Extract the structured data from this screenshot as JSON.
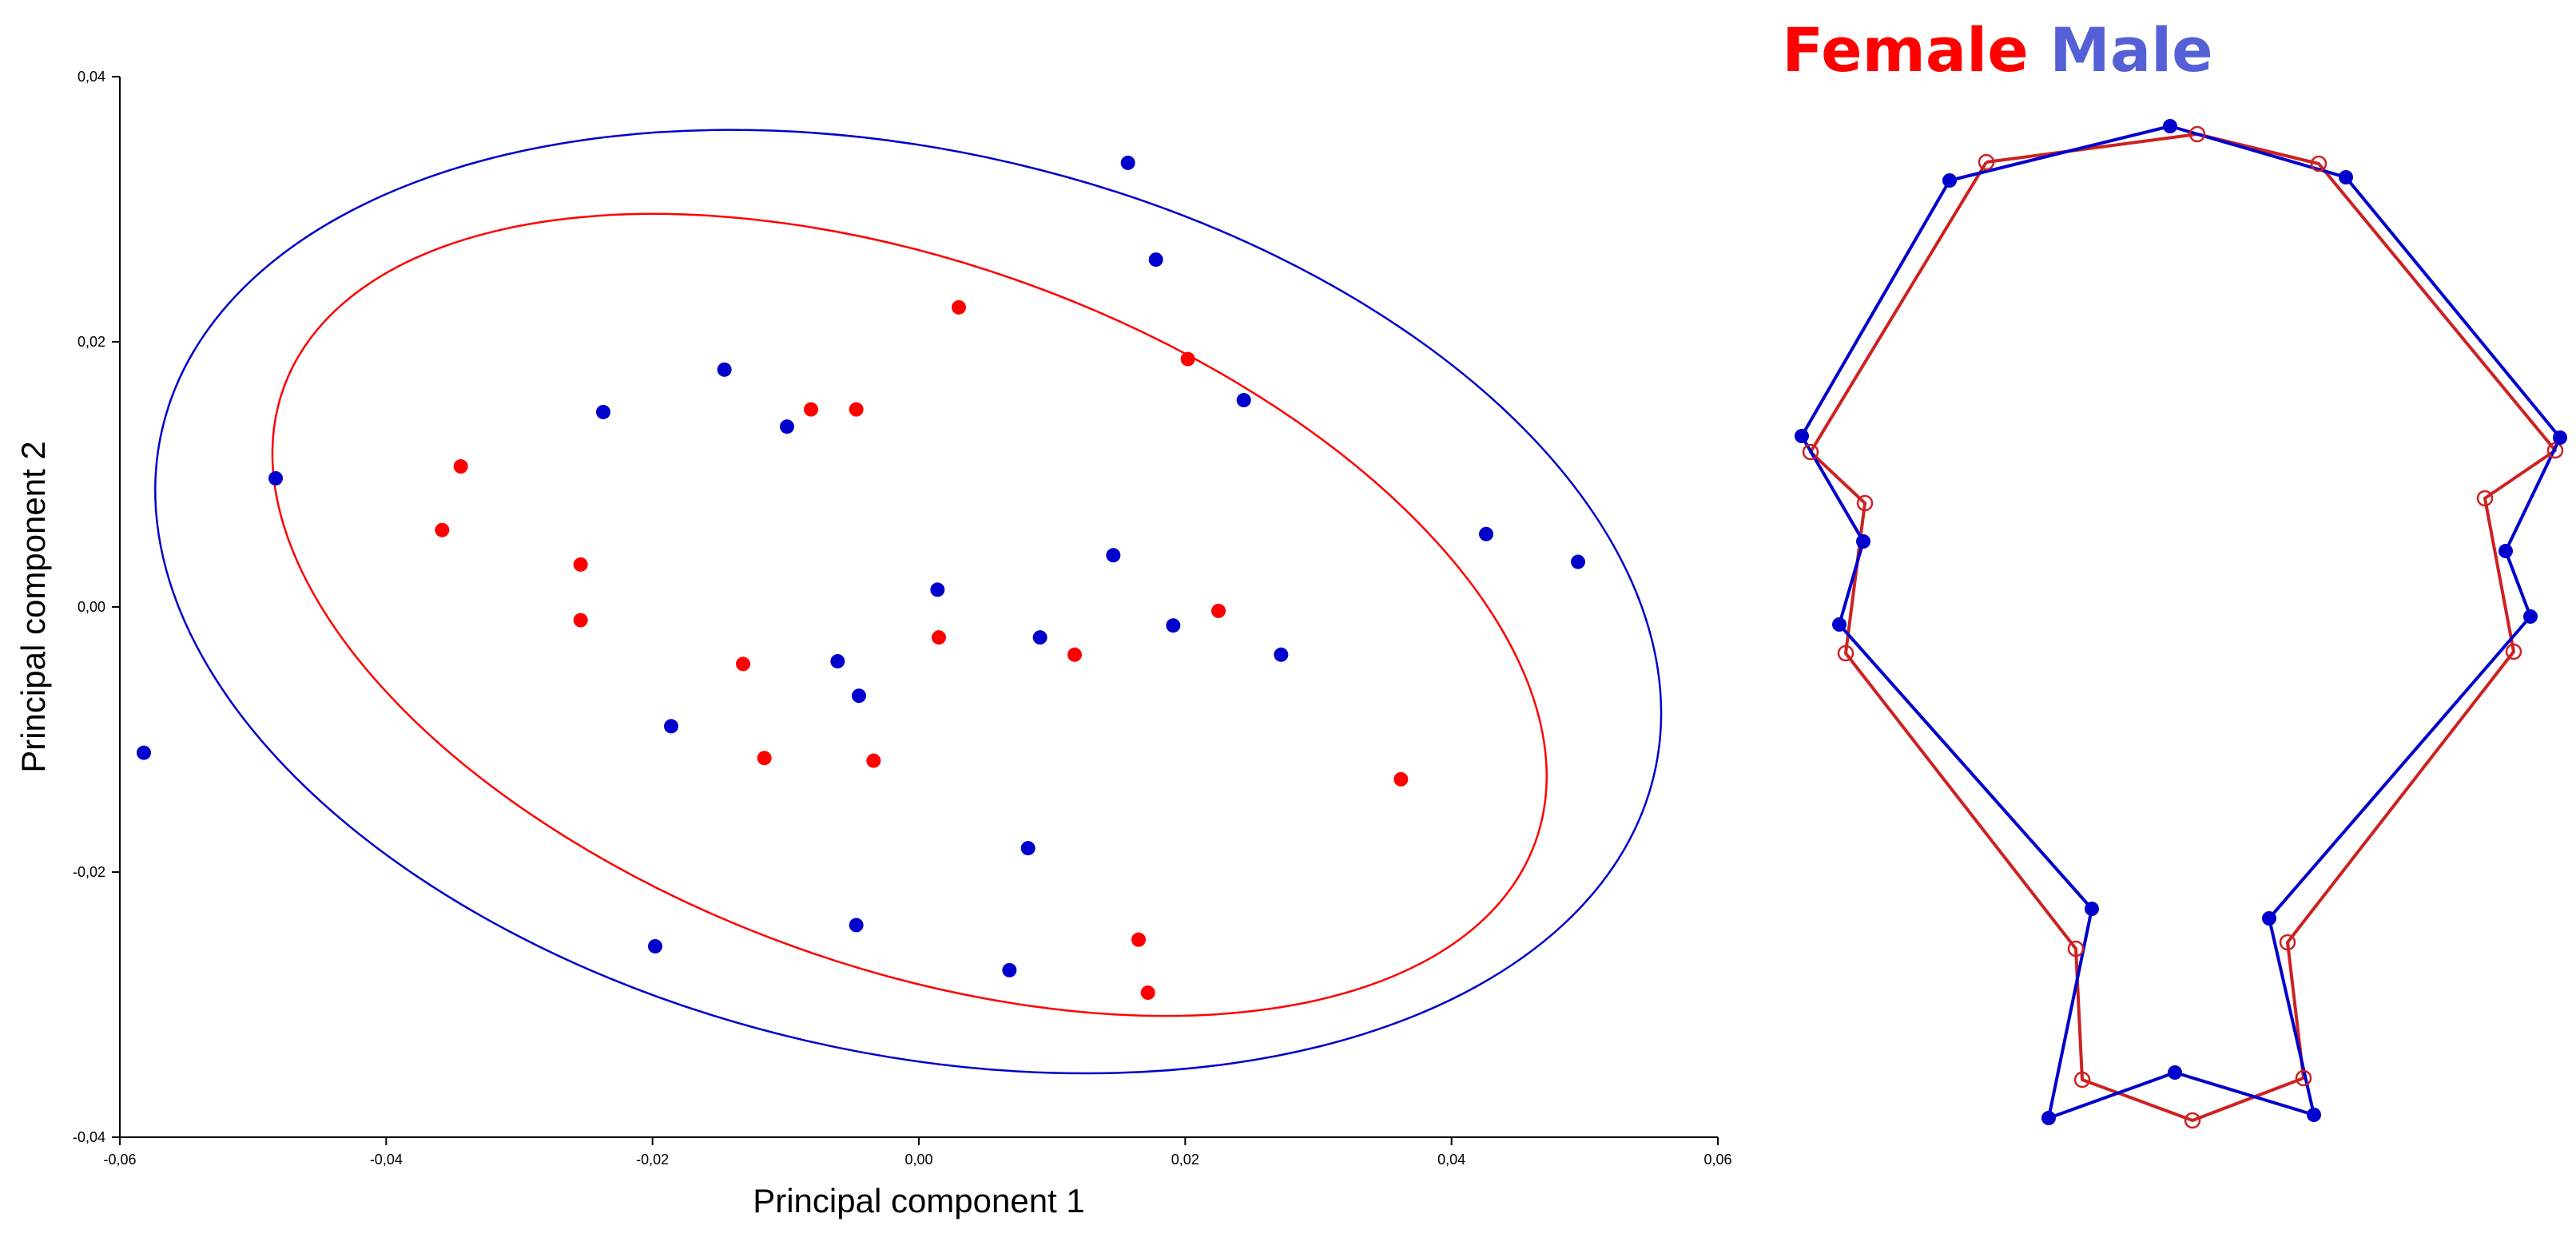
{
  "colors": {
    "female": "#ff0000",
    "male": "#0000cc",
    "male_legend": "#5560d6",
    "female_shape": "#cc2222",
    "axis": "#000000"
  },
  "legend": {
    "female_label": "Female",
    "male_label": "Male"
  },
  "chart_data": [
    {
      "type": "scatter",
      "title": "",
      "xlabel": "Principal component 1",
      "ylabel": "Principal component 2",
      "xlim": [
        -0.06,
        0.06
      ],
      "ylim": [
        -0.04,
        0.04
      ],
      "x_ticks": [
        "-0,06",
        "-0,04",
        "-0,02",
        "0,00",
        "0,02",
        "0,04",
        "0,06"
      ],
      "y_ticks": [
        "0,04",
        "0,02",
        "0,00",
        "-0,02",
        "-0,04"
      ],
      "grid": false,
      "series": [
        {
          "name": "Female",
          "color": "#ff0000",
          "points": [
            [
              0.003,
              0.0226
            ],
            [
              0.0202,
              0.0187
            ],
            [
              -0.0081,
              0.0149
            ],
            [
              -0.0047,
              0.0149
            ],
            [
              -0.0344,
              0.0106
            ],
            [
              -0.0358,
              0.0058
            ],
            [
              -0.0254,
              0.0032
            ],
            [
              -0.0254,
              -0.001
            ],
            [
              -0.0132,
              -0.0043
            ],
            [
              -0.0116,
              -0.0114
            ],
            [
              -0.0034,
              -0.0116
            ],
            [
              0.0015,
              -0.0023
            ],
            [
              0.0117,
              -0.0036
            ],
            [
              0.0225,
              -0.0003
            ],
            [
              0.0362,
              -0.013
            ],
            [
              0.0165,
              -0.0251
            ],
            [
              0.0172,
              -0.0291
            ]
          ],
          "ellipse": {
            "center": [
              -0.0007,
              -0.0006
            ],
            "semi_major": 0.05,
            "semi_minor": 0.0265,
            "angle_deg": -20
          }
        },
        {
          "name": "Male",
          "color": "#0000cc",
          "points": [
            [
              0.0157,
              0.0335
            ],
            [
              0.0178,
              0.0262
            ],
            [
              -0.0146,
              0.0179
            ],
            [
              -0.0237,
              0.0147
            ],
            [
              -0.0099,
              0.0136
            ],
            [
              0.0244,
              0.0156
            ],
            [
              -0.0483,
              0.0097
            ],
            [
              0.0426,
              0.0055
            ],
            [
              0.0495,
              0.0034
            ],
            [
              0.0014,
              0.0013
            ],
            [
              0.0146,
              0.0039
            ],
            [
              -0.0061,
              -0.0041
            ],
            [
              -0.0045,
              -0.0067
            ],
            [
              0.0091,
              -0.0023
            ],
            [
              0.0191,
              -0.0014
            ],
            [
              0.0272,
              -0.0036
            ],
            [
              -0.0186,
              -0.009
            ],
            [
              -0.0582,
              -0.011
            ],
            [
              0.0082,
              -0.0182
            ],
            [
              -0.0047,
              -0.024
            ],
            [
              -0.0198,
              -0.0256
            ],
            [
              0.0068,
              -0.0274
            ]
          ],
          "ellipse": {
            "center": [
              -0.0008,
              0.0004
            ],
            "semi_major": 0.0575,
            "semi_minor": 0.034,
            "angle_deg": -13
          }
        }
      ]
    },
    {
      "type": "line",
      "title": "",
      "series": [
        {
          "name": "Female",
          "color": "#cc2222",
          "marker": "open-circle",
          "points": [
            [
              2486,
              203
            ],
            [
              2750,
              168
            ],
            [
              2902,
              205
            ],
            [
              3198,
              564
            ],
            [
              3110,
              624
            ],
            [
              3146,
              816
            ],
            [
              2863,
              1180
            ],
            [
              2883,
              1350
            ],
            [
              2744,
              1403
            ],
            [
              2606,
              1352
            ],
            [
              2598,
              1188
            ],
            [
              2310,
              818
            ],
            [
              2334,
              630
            ],
            [
              2266,
              566
            ],
            [
              2486,
              203
            ]
          ]
        },
        {
          "name": "Male",
          "color": "#0000cc",
          "marker": "filled-circle",
          "points": [
            [
              2440,
              226
            ],
            [
              2716,
              158
            ],
            [
              2936,
              222
            ],
            [
              3204,
              548
            ],
            [
              3136,
              690
            ],
            [
              3167,
              772
            ],
            [
              2840,
              1150
            ],
            [
              2896,
              1396
            ],
            [
              2722,
              1343
            ],
            [
              2564,
              1400
            ],
            [
              2618,
              1138
            ],
            [
              2302,
              782
            ],
            [
              2332,
              678
            ],
            [
              2255,
              546
            ],
            [
              2440,
              226
            ]
          ]
        }
      ]
    }
  ]
}
